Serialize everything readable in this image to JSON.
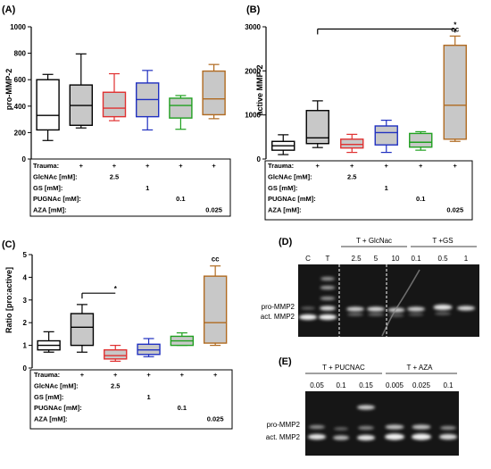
{
  "chart_data": [
    {
      "panel": "(A)",
      "type": "boxplot",
      "ylabel": "pro-MMP-2",
      "ylim": [
        0,
        1000
      ],
      "yticks": [
        0,
        200,
        400,
        600,
        800,
        1000
      ],
      "boxes": [
        {
          "min": 140,
          "q1": 220,
          "median": 330,
          "q3": 600,
          "max": 640,
          "fill": "#ffffff",
          "color": "#000000"
        },
        {
          "min": 235,
          "q1": 255,
          "median": 405,
          "q3": 560,
          "max": 795,
          "fill": "#c8c8c8",
          "color": "#000000"
        },
        {
          "min": 290,
          "q1": 320,
          "median": 385,
          "q3": 505,
          "max": 645,
          "fill": "#c8c8c8",
          "color": "#e03030"
        },
        {
          "min": 220,
          "q1": 320,
          "median": 450,
          "q3": 575,
          "max": 670,
          "fill": "#c8c8c8",
          "color": "#2030c0"
        },
        {
          "min": 225,
          "q1": 310,
          "median": 405,
          "q3": 460,
          "max": 480,
          "fill": "#c8c8c8",
          "color": "#20a020"
        },
        {
          "min": 305,
          "q1": 335,
          "median": 455,
          "q3": 665,
          "max": 715,
          "fill": "#c8c8c8",
          "color": "#b06a20"
        }
      ],
      "significance": []
    },
    {
      "panel": "(B)",
      "type": "boxplot",
      "ylabel": "active MMP-2",
      "ylim": [
        0,
        3000
      ],
      "yticks": [
        0,
        1000,
        2000,
        3000
      ],
      "boxes": [
        {
          "min": 100,
          "q1": 200,
          "median": 300,
          "q3": 400,
          "max": 550,
          "fill": "#ffffff",
          "color": "#000000"
        },
        {
          "min": 260,
          "q1": 350,
          "median": 480,
          "q3": 1100,
          "max": 1320,
          "fill": "#c8c8c8",
          "color": "#000000"
        },
        {
          "min": 150,
          "q1": 250,
          "median": 330,
          "q3": 450,
          "max": 560,
          "fill": "#c8c8c8",
          "color": "#e03030"
        },
        {
          "min": 150,
          "q1": 320,
          "median": 600,
          "q3": 750,
          "max": 880,
          "fill": "#c8c8c8",
          "color": "#2030c0"
        },
        {
          "min": 200,
          "q1": 270,
          "median": 380,
          "q3": 580,
          "max": 620,
          "fill": "#c8c8c8",
          "color": "#20a020"
        },
        {
          "min": 400,
          "q1": 450,
          "median": 1220,
          "q3": 2580,
          "max": 2790,
          "fill": "#c8c8c8",
          "color": "#b06a20"
        }
      ],
      "significance": [
        {
          "from": 1,
          "to": 5,
          "label": "*",
          "y": 2950
        },
        {
          "at": 5,
          "label": "cc"
        }
      ]
    },
    {
      "panel": "(C)",
      "type": "boxplot",
      "ylabel": "Ratio [pro:active]",
      "ylim": [
        0,
        5
      ],
      "yticks": [
        0,
        1,
        2,
        3,
        4,
        5
      ],
      "boxes": [
        {
          "min": 0.7,
          "q1": 0.8,
          "median": 1.0,
          "q3": 1.2,
          "max": 1.6,
          "fill": "#ffffff",
          "color": "#000000"
        },
        {
          "min": 0.7,
          "q1": 1.0,
          "median": 1.8,
          "q3": 2.4,
          "max": 2.8,
          "fill": "#c8c8c8",
          "color": "#000000"
        },
        {
          "min": 0.3,
          "q1": 0.4,
          "median": 0.55,
          "q3": 0.8,
          "max": 1.0,
          "fill": "#c8c8c8",
          "color": "#e03030"
        },
        {
          "min": 0.5,
          "q1": 0.6,
          "median": 0.8,
          "q3": 1.05,
          "max": 1.3,
          "fill": "#c8c8c8",
          "color": "#2030c0"
        },
        {
          "min": 1.0,
          "q1": 1.0,
          "median": 1.2,
          "q3": 1.4,
          "max": 1.55,
          "fill": "#c8c8c8",
          "color": "#20a020"
        },
        {
          "min": 1.0,
          "q1": 1.1,
          "median": 2.0,
          "q3": 4.05,
          "max": 4.5,
          "fill": "#c8c8c8",
          "color": "#b06a20"
        }
      ],
      "significance": [
        {
          "from": 1,
          "to": 2,
          "label": "*",
          "y": 3.3
        },
        {
          "at": 5,
          "label": "cc"
        }
      ]
    }
  ],
  "treatment_table": {
    "rows": [
      {
        "label": "Trauma:",
        "values": [
          "-",
          "+",
          "+",
          "+",
          "+",
          "+"
        ]
      },
      {
        "label": "GlcNAc [mM]:",
        "values": [
          "",
          "",
          "2.5",
          "",
          "",
          ""
        ]
      },
      {
        "label": "GS [mM]:",
        "values": [
          "",
          "",
          "",
          "1",
          "",
          ""
        ]
      },
      {
        "label": "PUGNAc [mM]:",
        "values": [
          "",
          "",
          "",
          "",
          "0.1",
          ""
        ]
      },
      {
        "label": "AZA [mM]:",
        "values": [
          "",
          "",
          "",
          "",
          "",
          "0.025"
        ]
      }
    ]
  },
  "gel_d": {
    "panel": "(D)",
    "group_labels": [
      "T + GlcNac",
      "T +GS"
    ],
    "lane_labels": [
      "C",
      "T",
      "2.5",
      "5",
      "10",
      "0.1",
      "0.5",
      "1"
    ],
    "band_labels": [
      "pro-MMP2",
      "act. MMP2"
    ]
  },
  "gel_e": {
    "panel": "(E)",
    "group_labels": [
      "T + PUCNAC",
      "T + AZA"
    ],
    "lane_labels": [
      "0.05",
      "0.1",
      "0.15",
      "0.005",
      "0.025",
      "0.1"
    ],
    "band_labels": [
      "pro-MMP2",
      "act. MMP2"
    ]
  }
}
